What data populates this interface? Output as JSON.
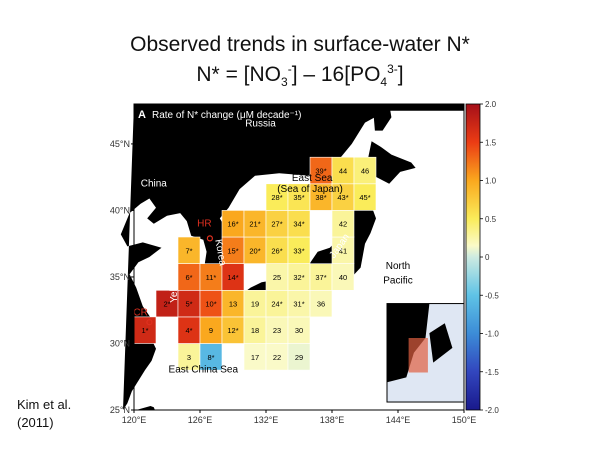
{
  "slide": {
    "title_line1": "Observed trends in surface-water N*",
    "title_line2": {
      "prefix": "N* = [NO",
      "no3_sub": "3",
      "no3_sup": "-",
      "mid": "] – 16[PO",
      "po4_sub": "4",
      "po4_sup": "3-",
      "suffix": "]"
    },
    "citation": [
      "Kim et al.",
      "(2011)"
    ]
  },
  "chart_data": {
    "type": "heatmap",
    "panel_label": "A",
    "title": "Rate of N* change (μM decade⁻¹)",
    "x_ticks": [
      "120°E",
      "126°E",
      "132°E",
      "138°E",
      "144°E",
      "150°E"
    ],
    "y_ticks": [
      "45°N",
      "40°N",
      "35°N",
      "30°N",
      "25°N"
    ],
    "xlim": [
      120,
      150
    ],
    "ylim": [
      25,
      48
    ],
    "colorbar": {
      "min": -2.0,
      "max": 2.0,
      "ticks": [
        "2.0",
        "1.5",
        "1.0",
        "0.5",
        "0",
        "-0.5",
        "-1.0",
        "-1.5",
        "-2.0"
      ]
    },
    "map_labels": [
      {
        "text": "Russia",
        "lon": 131.5,
        "lat": 46.3,
        "color": "#ffffff"
      },
      {
        "text": "China",
        "lon": 121.8,
        "lat": 41.8,
        "color": "#ffffff"
      },
      {
        "text": "East Sea",
        "lon": 136.2,
        "lat": 42.2,
        "color": "#000000"
      },
      {
        "text": "(Sea of Japan)",
        "lon": 136.0,
        "lat": 41.4,
        "color": "#000000"
      },
      {
        "text": "Korea",
        "lon": 127.6,
        "lat": 36.8,
        "color": "#ffffff",
        "rotate": 80
      },
      {
        "text": "Yellow Sea",
        "lon": 123.9,
        "lat": 34.9,
        "color": "#ffffff",
        "rotate": -90
      },
      {
        "text": "Japan",
        "lon": 138.9,
        "lat": 37.2,
        "color": "#ffffff",
        "rotate": -55
      },
      {
        "text": "North",
        "lon": 144.0,
        "lat": 35.6,
        "color": "#000000"
      },
      {
        "text": "Pacific",
        "lon": 144.0,
        "lat": 34.5,
        "color": "#000000"
      },
      {
        "text": "East China Sea",
        "lon": 126.3,
        "lat": 27.8,
        "color": "#000000"
      },
      {
        "text": "HR",
        "lon": 126.4,
        "lat": 38.8,
        "color": "#e03020"
      },
      {
        "text": "CR",
        "lon": 120.6,
        "lat": 32.1,
        "color": "#e03020"
      }
    ],
    "cells": [
      {
        "id": "1",
        "star": true,
        "lon": 121,
        "lat": 31,
        "value": 1.7
      },
      {
        "id": "2",
        "star": true,
        "lon": 123,
        "lat": 33,
        "value": 1.8
      },
      {
        "id": "3",
        "star": false,
        "lon": 125,
        "lat": 29,
        "value": 0.3
      },
      {
        "id": "4",
        "star": true,
        "lon": 125,
        "lat": 31,
        "value": 1.6
      },
      {
        "id": "5",
        "star": true,
        "lon": 125,
        "lat": 33,
        "value": 1.7
      },
      {
        "id": "6",
        "star": true,
        "lon": 125,
        "lat": 35,
        "value": 1.3
      },
      {
        "id": "7",
        "star": true,
        "lon": 125,
        "lat": 37,
        "value": 0.9
      },
      {
        "id": "8",
        "star": true,
        "lon": 127,
        "lat": 29,
        "value": -0.6
      },
      {
        "id": "9",
        "star": false,
        "lon": 127,
        "lat": 31,
        "value": 1.0
      },
      {
        "id": "10",
        "star": true,
        "lon": 127,
        "lat": 33,
        "value": 1.4
      },
      {
        "id": "11",
        "star": true,
        "lon": 127,
        "lat": 35,
        "value": 1.2
      },
      {
        "id": "12",
        "star": true,
        "lon": 129,
        "lat": 31,
        "value": 0.8
      },
      {
        "id": "13",
        "star": false,
        "lon": 129,
        "lat": 33,
        "value": 0.9
      },
      {
        "id": "14",
        "star": true,
        "lon": 129,
        "lat": 35,
        "value": 1.6
      },
      {
        "id": "15",
        "star": true,
        "lon": 129,
        "lat": 37,
        "value": 1.2
      },
      {
        "id": "16",
        "star": true,
        "lon": 129,
        "lat": 39,
        "value": 1.0
      },
      {
        "id": "17",
        "star": false,
        "lon": 131,
        "lat": 29,
        "value": 0.15
      },
      {
        "id": "18",
        "star": false,
        "lon": 131,
        "lat": 31,
        "value": 0.3
      },
      {
        "id": "19",
        "star": false,
        "lon": 131,
        "lat": 33,
        "value": 0.3
      },
      {
        "id": "20",
        "star": true,
        "lon": 131,
        "lat": 37,
        "value": 0.9
      },
      {
        "id": "21",
        "star": true,
        "lon": 131,
        "lat": 39,
        "value": 0.9
      },
      {
        "id": "22",
        "star": false,
        "lon": 133,
        "lat": 29,
        "value": 0.15
      },
      {
        "id": "23",
        "star": false,
        "lon": 133,
        "lat": 31,
        "value": 0.2
      },
      {
        "id": "24",
        "star": true,
        "lon": 133,
        "lat": 33,
        "value": 0.3
      },
      {
        "id": "25",
        "star": false,
        "lon": 133,
        "lat": 35,
        "value": 0.25
      },
      {
        "id": "26",
        "star": true,
        "lon": 133,
        "lat": 37,
        "value": 0.6
      },
      {
        "id": "27",
        "star": true,
        "lon": 133,
        "lat": 39,
        "value": 0.7
      },
      {
        "id": "28",
        "star": true,
        "lon": 133,
        "lat": 41,
        "value": 0.5
      },
      {
        "id": "29",
        "star": false,
        "lon": 135,
        "lat": 29,
        "value": 0.1
      },
      {
        "id": "30",
        "star": false,
        "lon": 135,
        "lat": 31,
        "value": 0.2
      },
      {
        "id": "31",
        "star": true,
        "lon": 135,
        "lat": 33,
        "value": 0.25
      },
      {
        "id": "32",
        "star": true,
        "lon": 135,
        "lat": 35,
        "value": 0.3
      },
      {
        "id": "33",
        "star": true,
        "lon": 135,
        "lat": 37,
        "value": 0.5
      },
      {
        "id": "34",
        "star": true,
        "lon": 135,
        "lat": 39,
        "value": 0.6
      },
      {
        "id": "35",
        "star": true,
        "lon": 135,
        "lat": 41,
        "value": 0.55
      },
      {
        "id": "36",
        "star": false,
        "lon": 137,
        "lat": 33,
        "value": 0.2
      },
      {
        "id": "37",
        "star": true,
        "lon": 137,
        "lat": 35,
        "value": 0.3
      },
      {
        "id": "38",
        "star": true,
        "lon": 137,
        "lat": 41,
        "value": 0.9
      },
      {
        "id": "39",
        "star": true,
        "lon": 137,
        "lat": 43,
        "value": 1.3
      },
      {
        "id": "40",
        "star": false,
        "lon": 139,
        "lat": 35,
        "value": 0.2
      },
      {
        "id": "41",
        "star": false,
        "lon": 139,
        "lat": 37,
        "value": 0.25
      },
      {
        "id": "42",
        "star": false,
        "lon": 139,
        "lat": 39,
        "value": 0.3
      },
      {
        "id": "43",
        "star": true,
        "lon": 139,
        "lat": 41,
        "value": 0.7
      },
      {
        "id": "44",
        "star": false,
        "lon": 139,
        "lat": 43,
        "value": 0.6
      },
      {
        "id": "45",
        "star": true,
        "lon": 141,
        "lat": 41,
        "value": 0.5
      },
      {
        "id": "46",
        "star": false,
        "lon": 141,
        "lat": 43,
        "value": 0.4
      }
    ]
  }
}
